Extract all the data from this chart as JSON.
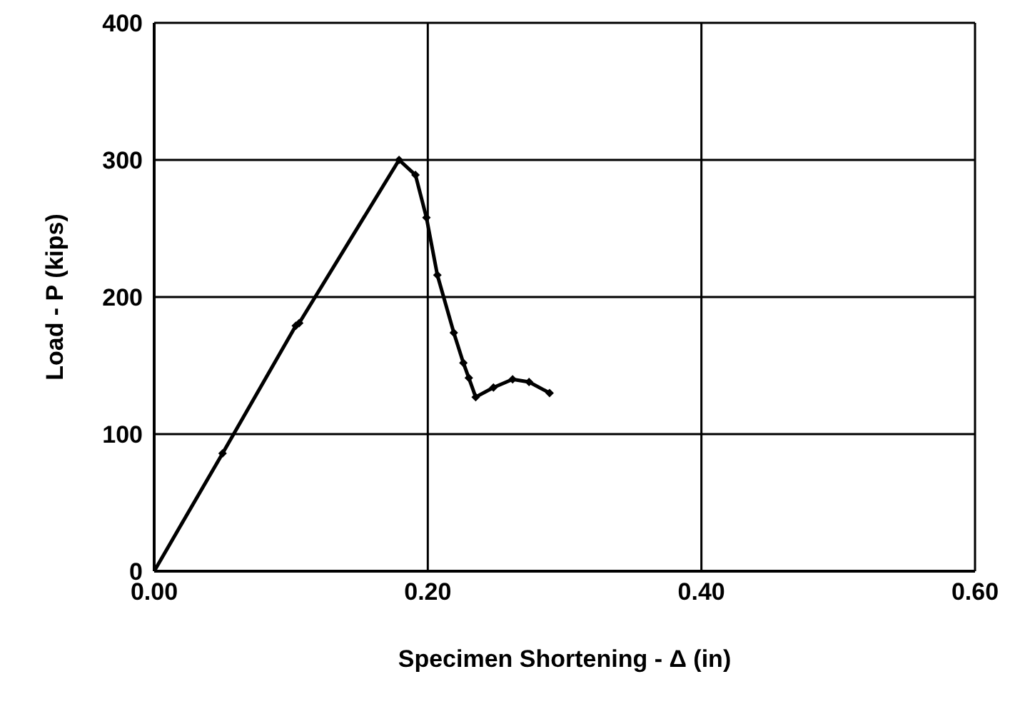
{
  "chart_data": {
    "type": "line",
    "xlabel": "Specimen Shortening - Δ (in)",
    "ylabel": "Load - P (kips)",
    "x": [
      0,
      0.05,
      0.1035,
      0.106,
      0.179,
      0.191,
      0.199,
      0.207,
      0.219,
      0.226,
      0.23,
      0.235,
      0.248,
      0.262,
      0.274,
      0.289
    ],
    "series": [
      {
        "color": "#000000",
        "values": [
          0,
          86,
          179,
          181,
          300,
          289,
          258,
          216,
          174,
          152,
          141,
          127,
          134,
          140,
          138,
          130
        ]
      }
    ],
    "xlim": [
      0,
      0.6
    ],
    "xticks": [
      {
        "value": 0,
        "label": "0.00"
      },
      {
        "value": 0.2,
        "label": "0.20"
      },
      {
        "value": 0.4,
        "label": "0.40"
      },
      {
        "value": 0.6,
        "label": "0.60"
      }
    ],
    "ylim": [
      0,
      400
    ],
    "yticks": [
      0,
      100,
      200,
      300,
      400
    ],
    "grid": true,
    "marker": "diamond",
    "line_style": "solid",
    "legend": false
  }
}
